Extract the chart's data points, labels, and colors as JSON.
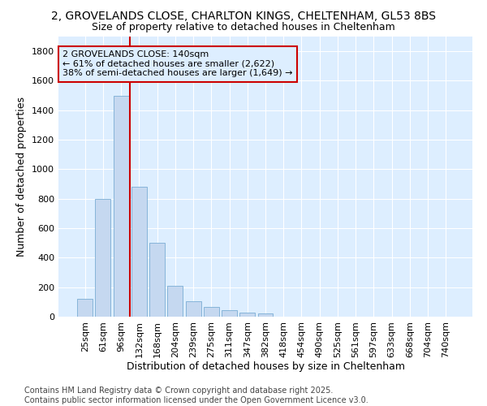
{
  "title_line1": "2, GROVELANDS CLOSE, CHARLTON KINGS, CHELTENHAM, GL53 8BS",
  "title_line2": "Size of property relative to detached houses in Cheltenham",
  "xlabel": "Distribution of detached houses by size in Cheltenham",
  "ylabel": "Number of detached properties",
  "bar_color": "#c5d8f0",
  "bar_edge_color": "#7aadd4",
  "vline_color": "#cc0000",
  "vline_x_index": 3,
  "annotation_text": "2 GROVELANDS CLOSE: 140sqm\n← 61% of detached houses are smaller (2,622)\n38% of semi-detached houses are larger (1,649) →",
  "annotation_box_color": "#cc0000",
  "plot_bg_color": "#ddeeff",
  "fig_bg_color": "#ffffff",
  "categories": [
    "25sqm",
    "61sqm",
    "96sqm",
    "132sqm",
    "168sqm",
    "204sqm",
    "239sqm",
    "275sqm",
    "311sqm",
    "347sqm",
    "382sqm",
    "418sqm",
    "454sqm",
    "490sqm",
    "525sqm",
    "561sqm",
    "597sqm",
    "633sqm",
    "668sqm",
    "704sqm",
    "740sqm"
  ],
  "values": [
    120,
    800,
    1500,
    880,
    500,
    210,
    105,
    65,
    45,
    30,
    20,
    0,
    0,
    0,
    0,
    0,
    0,
    0,
    0,
    0,
    0
  ],
  "ylim": [
    0,
    1900
  ],
  "yticks": [
    0,
    200,
    400,
    600,
    800,
    1000,
    1200,
    1400,
    1600,
    1800
  ],
  "footnote": "Contains HM Land Registry data © Crown copyright and database right 2025.\nContains public sector information licensed under the Open Government Licence v3.0.",
  "title_fontsize": 10,
  "subtitle_fontsize": 9,
  "tick_fontsize": 8,
  "label_fontsize": 9,
  "annotation_fontsize": 8,
  "footnote_fontsize": 7
}
